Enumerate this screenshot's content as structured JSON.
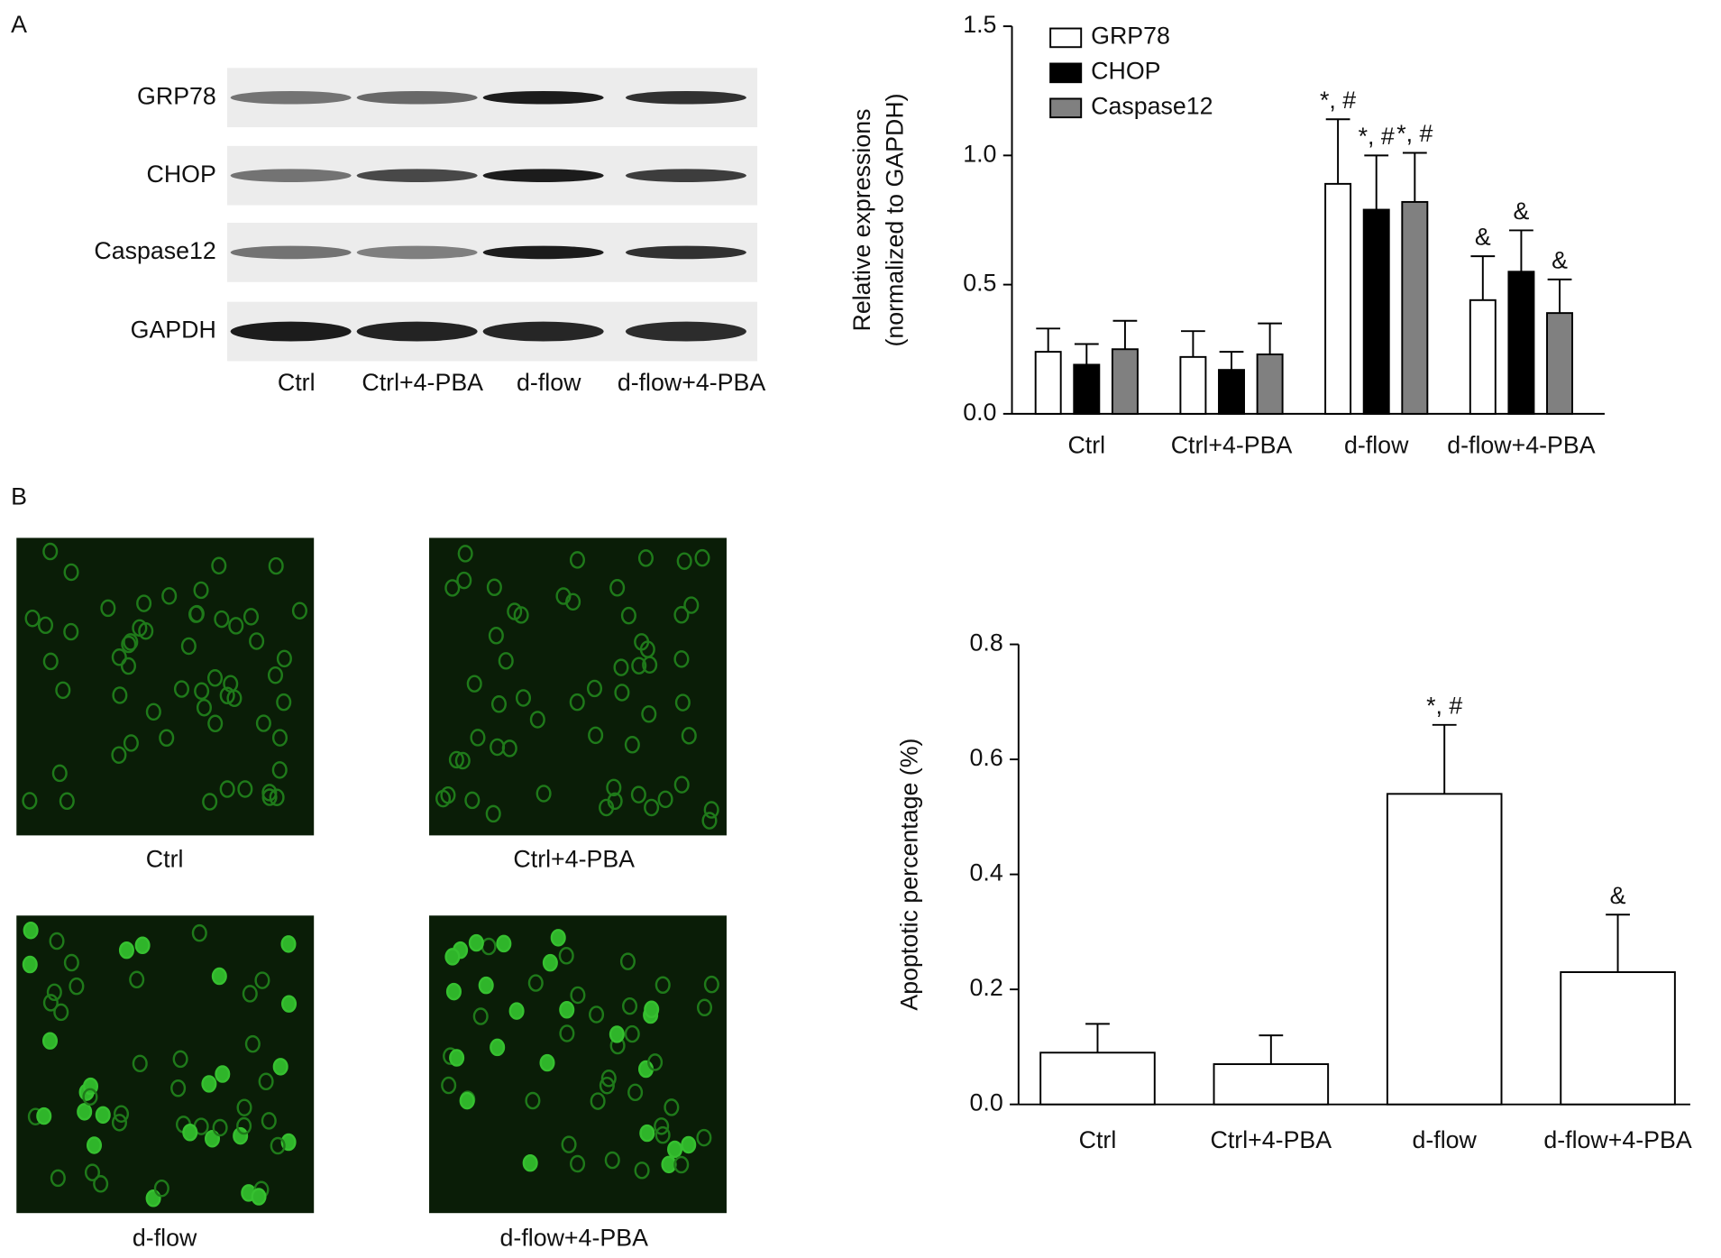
{
  "panel_labels": [
    "A",
    "B"
  ],
  "blot": {
    "proteins": [
      "GRP78",
      "CHOP",
      "Caspase12",
      "GAPDH"
    ],
    "lanes": [
      "Ctrl",
      "Ctrl+4-PBA",
      "d-flow",
      "d-flow+4-PBA"
    ]
  },
  "micrographs": {
    "captions": [
      "Ctrl",
      "Ctrl+4-PBA",
      "d-flow",
      "d-flow+4-PBA"
    ]
  },
  "chart_data": [
    {
      "type": "bar",
      "ylabel": [
        "Relative expressions",
        "(normalized to GAPDH)"
      ],
      "categories": [
        "Ctrl",
        "Ctrl+4-PBA",
        "d-flow",
        "d-flow+4-PBA"
      ],
      "series": [
        {
          "name": "GRP78",
          "color": "#ffffff",
          "values": [
            0.24,
            0.22,
            0.89,
            0.44
          ],
          "errors": [
            0.09,
            0.1,
            0.25,
            0.17
          ],
          "annotations": [
            null,
            null,
            "*, #",
            "&"
          ]
        },
        {
          "name": "CHOP",
          "color": "#000000",
          "values": [
            0.19,
            0.17,
            0.79,
            0.55
          ],
          "errors": [
            0.08,
            0.07,
            0.21,
            0.16
          ],
          "annotations": [
            null,
            null,
            "*, #",
            "&"
          ]
        },
        {
          "name": "Caspase12",
          "color": "#808080",
          "values": [
            0.25,
            0.23,
            0.82,
            0.39
          ],
          "errors": [
            0.11,
            0.12,
            0.19,
            0.13
          ],
          "annotations": [
            null,
            null,
            "*, #",
            "&"
          ]
        }
      ],
      "ylim": [
        0,
        1.5
      ],
      "yticks": [
        {
          "value": 0,
          "label": "0.0"
        },
        {
          "value": 0.5,
          "label": "0.5"
        },
        {
          "value": 1,
          "label": "1.0"
        },
        {
          "value": 1.5,
          "label": "1.5"
        }
      ],
      "legend": "top-left"
    },
    {
      "type": "bar",
      "ylabel": [
        "Apoptotic percentage (%)"
      ],
      "categories": [
        "Ctrl",
        "Ctrl+4-PBA",
        "d-flow",
        "d-flow+4-PBA"
      ],
      "series": [
        {
          "color": "#ffffff",
          "values": [
            0.09,
            0.07,
            0.54,
            0.23
          ],
          "errors": [
            0.05,
            0.05,
            0.12,
            0.1
          ],
          "annotations": [
            null,
            null,
            "*, #",
            "&"
          ]
        }
      ],
      "ylim": [
        0,
        0.8
      ],
      "yticks": [
        {
          "value": 0,
          "label": "0.0"
        },
        {
          "value": 0.2,
          "label": "0.2"
        },
        {
          "value": 0.4,
          "label": "0.4"
        },
        {
          "value": 0.6,
          "label": "0.6"
        },
        {
          "value": 0.8,
          "label": "0.8"
        }
      ]
    }
  ]
}
